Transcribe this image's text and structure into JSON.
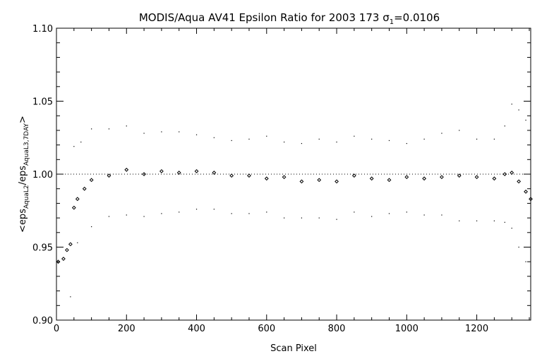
{
  "chart_data": {
    "type": "scatter",
    "title": {
      "prefix": "MODIS/Aqua AV41 Epsilon Ratio for 2003 173 ",
      "sigma_symbol": "σ",
      "sigma_subscript": "1",
      "suffix": "=0.0106"
    },
    "xlabel": "Scan Pixel",
    "ylabel": {
      "open": "<eps",
      "sub1": "AquaL2",
      "mid": "/eps",
      "sub2": "AquaL3,7DAY",
      "close": ">"
    },
    "xlim": [
      0,
      1354
    ],
    "ylim": [
      0.9,
      1.1
    ],
    "x_ticks": [
      0,
      200,
      400,
      600,
      800,
      1000,
      1200
    ],
    "x_tick_labels": [
      "0",
      "200",
      "400",
      "600",
      "800",
      "1000",
      "1200"
    ],
    "y_ticks": [
      0.9,
      0.95,
      1.0,
      1.05,
      1.1
    ],
    "y_tick_labels": [
      "0.90",
      "0.95",
      "1.00",
      "1.05",
      "1.10"
    ],
    "reference_line": 1.0,
    "grid": false,
    "legend": "none",
    "colors": {
      "marks": "#000000",
      "background": "#ffffff"
    },
    "series": [
      {
        "style": "diamond",
        "x": [
          5,
          20,
          30,
          40,
          50,
          60,
          80,
          100,
          150,
          200,
          250,
          300,
          350,
          400,
          450,
          500,
          550,
          600,
          650,
          700,
          750,
          800,
          850,
          900,
          950,
          1000,
          1050,
          1100,
          1150,
          1200,
          1250,
          1280,
          1300,
          1320,
          1340,
          1354
        ],
        "y": [
          0.94,
          0.942,
          0.948,
          0.952,
          0.977,
          0.983,
          0.99,
          0.996,
          0.999,
          1.003,
          1.0,
          1.002,
          1.001,
          1.002,
          1.001,
          0.999,
          0.999,
          0.997,
          0.998,
          0.995,
          0.996,
          0.995,
          0.999,
          0.997,
          0.996,
          0.998,
          0.997,
          0.998,
          0.999,
          0.998,
          0.997,
          1.0,
          1.001,
          0.995,
          0.988,
          0.983
        ]
      },
      {
        "style": "dot",
        "x": [
          50,
          70,
          100,
          150,
          200,
          250,
          300,
          350,
          400,
          450,
          500,
          550,
          600,
          650,
          700,
          750,
          800,
          850,
          900,
          950,
          1000,
          1050,
          1100,
          1150,
          1200,
          1250,
          1280,
          1300,
          1320,
          1340
        ],
        "y": [
          1.019,
          1.022,
          1.031,
          1.031,
          1.033,
          1.028,
          1.029,
          1.029,
          1.027,
          1.025,
          1.023,
          1.024,
          1.026,
          1.022,
          1.021,
          1.024,
          1.022,
          1.026,
          1.024,
          1.023,
          1.021,
          1.024,
          1.028,
          1.03,
          1.024,
          1.024,
          1.033,
          1.048,
          1.044,
          1.037
        ]
      },
      {
        "style": "dot",
        "x": [
          40,
          60,
          100,
          150,
          200,
          250,
          300,
          350,
          400,
          450,
          500,
          550,
          600,
          650,
          700,
          750,
          800,
          850,
          900,
          950,
          1000,
          1050,
          1100,
          1150,
          1200,
          1250,
          1280,
          1300,
          1320,
          1340
        ],
        "y": [
          0.916,
          0.953,
          0.964,
          0.971,
          0.972,
          0.971,
          0.973,
          0.974,
          0.976,
          0.976,
          0.973,
          0.973,
          0.974,
          0.97,
          0.97,
          0.97,
          0.969,
          0.974,
          0.971,
          0.973,
          0.974,
          0.972,
          0.972,
          0.968,
          0.968,
          0.968,
          0.967,
          0.963,
          0.95,
          0.94
        ]
      }
    ]
  }
}
